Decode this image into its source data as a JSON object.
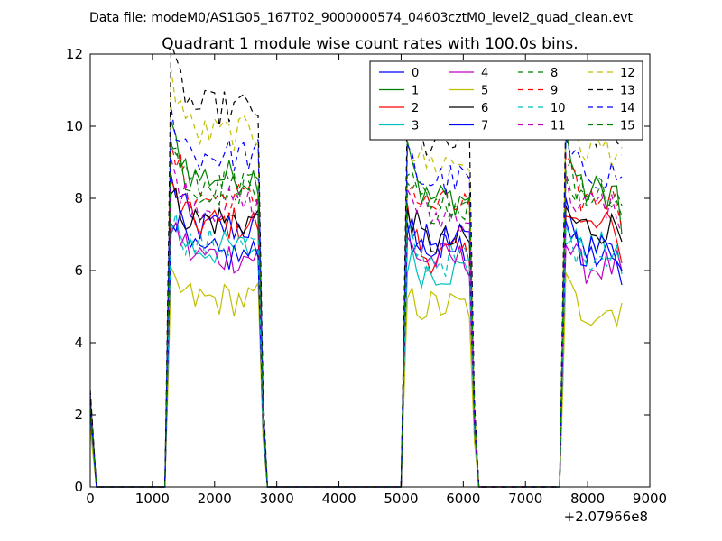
{
  "chart_data": {
    "type": "line",
    "suptitle": "Data file: modeM0/AS1G05_167T02_9000000574_04603cztM0_level2_quad_clean.evt",
    "title": "Quadrant 1 module wise count rates with 100.0s bins.",
    "xlabel": "",
    "ylabel": "",
    "x_offset_label": "+2.07966e8",
    "xlim": [
      0,
      9000
    ],
    "ylim": [
      0,
      12
    ],
    "x_ticks": [
      0,
      1000,
      2000,
      3000,
      4000,
      5000,
      6000,
      7000,
      8000,
      9000
    ],
    "y_ticks": [
      0,
      2,
      4,
      6,
      8,
      10,
      12
    ],
    "legend_position": "top-right",
    "legend_columns": 4,
    "segments": [
      {
        "x0": 1300,
        "x1": 2700
      },
      {
        "x0": 5100,
        "x1": 6100
      },
      {
        "x0": 7650,
        "x1": 8550
      }
    ],
    "series": [
      {
        "name": "0",
        "color": "#0000ff",
        "dash": "solid",
        "levels": [
          7.2,
          6.6,
          6.4
        ],
        "peaks": [
          8.5,
          7.0,
          8.2
        ],
        "end": 5.6,
        "start_val": 2.6
      },
      {
        "name": "1",
        "color": "#008000",
        "dash": "solid",
        "levels": [
          8.6,
          8.0,
          8.2
        ],
        "peaks": [
          9.8,
          9.8,
          9.8
        ],
        "end": 7.0,
        "start_val": 2.1
      },
      {
        "name": "2",
        "color": "#ff0000",
        "dash": "solid",
        "levels": [
          7.3,
          6.4,
          7.2
        ],
        "peaks": [
          8.2,
          7.5,
          8.0
        ],
        "end": 6.2,
        "start_val": 2.5
      },
      {
        "name": "3",
        "color": "#00bfbf",
        "dash": "solid",
        "levels": [
          6.6,
          6.0,
          6.6
        ],
        "peaks": [
          7.3,
          6.3,
          7.0
        ],
        "end": 5.9,
        "start_val": 1.9
      },
      {
        "name": "4",
        "color": "#bf00bf",
        "dash": "solid",
        "levels": [
          6.4,
          6.3,
          6.1
        ],
        "peaks": [
          7.3,
          6.8,
          6.8
        ],
        "end": 6.0,
        "start_val": 1.8
      },
      {
        "name": "5",
        "color": "#bfbf00",
        "dash": "solid",
        "levels": [
          5.2,
          5.0,
          4.9
        ],
        "peaks": [
          5.6,
          5.2,
          5.6
        ],
        "end": 5.1,
        "start_val": 1.6
      },
      {
        "name": "6",
        "color": "#000000",
        "dash": "solid",
        "levels": [
          7.4,
          6.8,
          7.2
        ],
        "peaks": [
          8.0,
          7.8,
          7.6
        ],
        "end": 6.8,
        "start_val": 2.3
      },
      {
        "name": "7",
        "color": "#0000ff",
        "dash": "solid",
        "levels": [
          6.4,
          6.8,
          6.6
        ],
        "peaks": [
          7.8,
          7.5,
          7.5
        ],
        "end": 6.0,
        "start_val": 2.2
      },
      {
        "name": "8",
        "color": "#008000",
        "dash": "dashed",
        "levels": [
          8.3,
          8.0,
          8.2
        ],
        "peaks": [
          9.4,
          8.8,
          8.8
        ],
        "end": 7.5,
        "start_val": 2.4
      },
      {
        "name": "9",
        "color": "#ff0000",
        "dash": "dashed",
        "levels": [
          8.0,
          7.8,
          8.0
        ],
        "peaks": [
          9.3,
          8.5,
          8.8
        ],
        "end": 7.2,
        "start_val": 2.3
      },
      {
        "name": "10",
        "color": "#00bfbf",
        "dash": "dashed",
        "levels": [
          6.7,
          6.3,
          6.5
        ],
        "peaks": [
          7.4,
          7.0,
          7.0
        ],
        "end": 6.2,
        "start_val": 2.0
      },
      {
        "name": "11",
        "color": "#bf00bf",
        "dash": "dashed",
        "levels": [
          7.8,
          7.5,
          7.8
        ],
        "peaks": [
          8.8,
          8.3,
          8.3
        ],
        "end": 7.0,
        "start_val": 2.2
      },
      {
        "name": "12",
        "color": "#bfbf00",
        "dash": "dashed",
        "levels": [
          9.8,
          9.0,
          9.4
        ],
        "peaks": [
          11.3,
          9.5,
          10.7
        ],
        "end": 9.2,
        "start_val": 2.5
      },
      {
        "name": "13",
        "color": "#000000",
        "dash": "dashed",
        "levels": [
          10.5,
          9.5,
          9.8
        ],
        "peaks": [
          11.8,
          10.0,
          10.5
        ],
        "end": 9.4,
        "start_val": 2.7
      },
      {
        "name": "14",
        "color": "#0000ff",
        "dash": "dashed",
        "levels": [
          9.2,
          8.5,
          8.7
        ],
        "peaks": [
          10.3,
          9.2,
          9.4
        ],
        "end": 8.6,
        "start_val": 2.3
      },
      {
        "name": "15",
        "color": "#008000",
        "dash": "dashed",
        "levels": [
          8.3,
          7.8,
          8.2
        ],
        "peaks": [
          9.5,
          8.6,
          9.0
        ],
        "end": 7.8,
        "start_val": 2.2
      }
    ]
  }
}
